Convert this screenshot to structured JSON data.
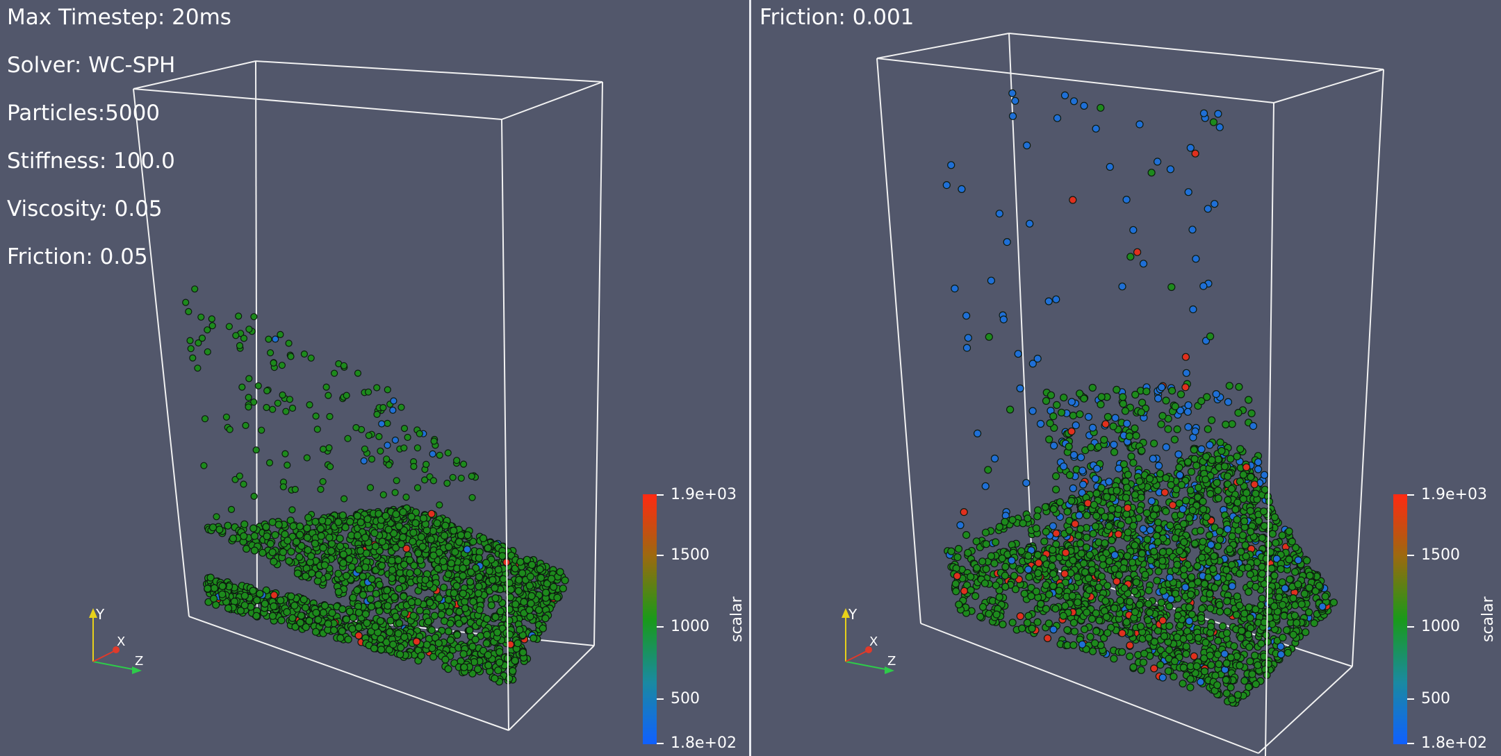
{
  "left_view": {
    "labels": [
      "Max Timestep: 20ms",
      "Solver: WC-SPH",
      "Particles:5000",
      "Stiffness: 100.0",
      "Viscosity: 0.05",
      "Friction: 0.05"
    ],
    "colorbar": {
      "title": "scalar",
      "ticks": [
        "1.9e+03",
        "1500",
        "1000",
        "500",
        "1.8e+02"
      ]
    },
    "orientation_axes": {
      "y": "Y",
      "x": "X",
      "z": "Z"
    }
  },
  "right_view": {
    "labels": [
      "Friction: 0.001"
    ],
    "colorbar": {
      "title": "scalar",
      "ticks": [
        "1.9e+03",
        "1500",
        "1000",
        "500",
        "1.8e+02"
      ]
    },
    "orientation_axes": {
      "y": "Y",
      "x": "X",
      "z": "Z"
    }
  },
  "colors": {
    "background": "#52576b",
    "box_outline": "#f2f2f2",
    "particle_green": "#1d8a1c",
    "particle_blue": "#1f6fd6",
    "particle_red": "#e0301e",
    "colormap": [
      "#ff2a12",
      "#9a6a10",
      "#1a9a1a",
      "#1a8aa0",
      "#1060ff"
    ]
  }
}
